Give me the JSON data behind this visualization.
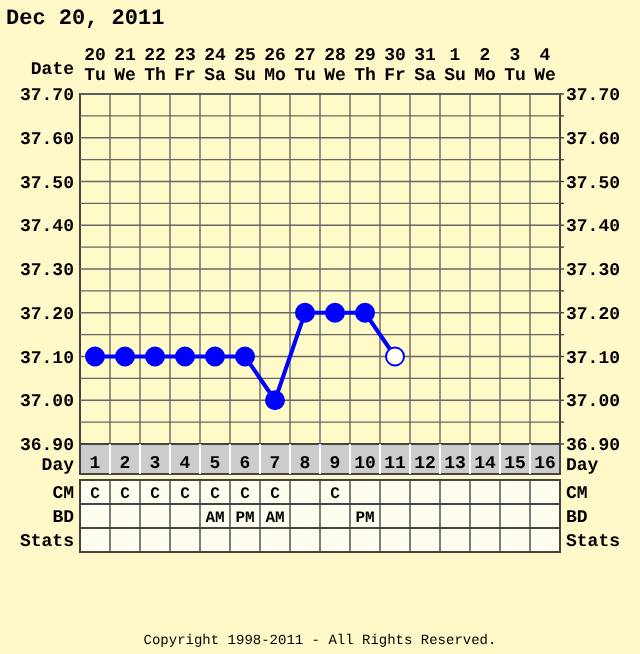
{
  "chart_data": [
    {
      "type": "line",
      "title": "Dec 20, 2011",
      "xlabel": "Day",
      "x2label": "Date",
      "x": [
        1,
        2,
        3,
        4,
        5,
        6,
        7,
        8,
        9,
        10,
        11
      ],
      "xlim": [
        0.5,
        16.5
      ],
      "xticks": [
        1,
        2,
        3,
        4,
        5,
        6,
        7,
        8,
        9,
        10,
        11,
        12,
        13,
        14,
        15,
        16
      ],
      "x2lim": [
        "2011-12-19T12:00",
        "2012-01-04T12:00"
      ],
      "x2ticks": [
        {
          "value": "2011-12-20",
          "label": "20 Tu"
        },
        {
          "value": "2011-12-21",
          "label": "21 We"
        },
        {
          "value": "2011-12-22",
          "label": "22 Th"
        },
        {
          "value": "2011-12-23",
          "label": "23 Fr"
        },
        {
          "value": "2011-12-24",
          "label": "24 Sa"
        },
        {
          "value": "2011-12-25",
          "label": "25 Su"
        },
        {
          "value": "2011-12-26",
          "label": "26 Mo"
        },
        {
          "value": "2011-12-27",
          "label": "27 Tu"
        },
        {
          "value": "2011-12-28",
          "label": "28 We"
        },
        {
          "value": "2011-12-29",
          "label": "29 Th"
        },
        {
          "value": "2011-12-30",
          "label": "30 Fr"
        },
        {
          "value": "2011-12-31",
          "label": "31 Sa"
        },
        {
          "value": "2012-01-01",
          "label": "1 Su"
        },
        {
          "value": "2012-01-02",
          "label": "2 Mo"
        },
        {
          "value": "2012-01-03",
          "label": "3 Tu"
        },
        {
          "value": "2012-01-04",
          "label": "4 We"
        }
      ],
      "series": [
        {
          "color": "#0000ff",
          "values": [
            37.1,
            37.1,
            37.1,
            37.1,
            37.1,
            37.1,
            37.0,
            37.2,
            37.2,
            37.2,
            37.1
          ],
          "colors": [
            "#0000ff",
            "#0000ff",
            "#0000ff",
            "#0000ff",
            "#0000ff",
            "#0000ff",
            "#0000ff",
            "#0000ff",
            "#0000ff",
            "#0000ff",
            "#ffffff"
          ]
        }
      ],
      "ylim": [
        36.9,
        37.7
      ],
      "yticks": [
        {
          "value": 36.9,
          "label": "36.90"
        },
        {
          "value": 36.95,
          "label": null
        },
        {
          "value": 37.0,
          "label": "37.00"
        },
        {
          "value": 37.05,
          "label": null
        },
        {
          "value": 37.1,
          "label": "37.10"
        },
        {
          "value": 37.15,
          "label": null
        },
        {
          "value": 37.2,
          "label": "37.20"
        },
        {
          "value": 37.25,
          "label": null
        },
        {
          "value": 37.3,
          "label": "37.30"
        },
        {
          "value": 37.35,
          "label": null
        },
        {
          "value": 37.4,
          "label": "37.40"
        },
        {
          "value": 37.45,
          "label": null
        },
        {
          "value": 37.5,
          "label": "37.50"
        },
        {
          "value": 37.55,
          "label": null
        },
        {
          "value": 37.6,
          "label": "37.60"
        },
        {
          "value": 37.65,
          "label": null
        },
        {
          "value": 37.7,
          "label": "37.70"
        }
      ],
      "y2lim": [
        36.9,
        37.7
      ],
      "y2ticks": [
        {
          "value": 36.9,
          "label": "36.90"
        },
        {
          "value": 36.95,
          "label": null
        },
        {
          "value": 37.0,
          "label": "37.00"
        },
        {
          "value": 37.05,
          "label": null
        },
        {
          "value": 37.1,
          "label": "37.10"
        },
        {
          "value": 37.15,
          "label": null
        },
        {
          "value": 37.2,
          "label": "37.20"
        },
        {
          "value": 37.25,
          "label": null
        },
        {
          "value": 37.3,
          "label": "37.30"
        },
        {
          "value": 37.35,
          "label": null
        },
        {
          "value": 37.4,
          "label": "37.40"
        },
        {
          "value": 37.45,
          "label": null
        },
        {
          "value": 37.5,
          "label": "37.50"
        },
        {
          "value": 37.55,
          "label": null
        },
        {
          "value": 37.6,
          "label": "37.60"
        },
        {
          "value": 37.65,
          "label": null
        },
        {
          "value": 37.7,
          "label": "37.70"
        }
      ],
      "grid": true,
      "marker": "circle",
      "line_style": "solid"
    },
    {
      "type": "other",
      "y_categories": [
        "CM",
        "BD",
        "Stats"
      ],
      "y2_categories": [
        "CM",
        "BD",
        "Stats"
      ],
      "cell_labels": [
        [
          "C",
          "C",
          "C",
          "C",
          "C",
          "C",
          "C",
          null,
          "C",
          null,
          null,
          null,
          null,
          null,
          null,
          null
        ],
        [
          null,
          null,
          null,
          null,
          "AM",
          "PM",
          "AM",
          null,
          null,
          "PM",
          null,
          null,
          null,
          null,
          null,
          null
        ],
        [
          null,
          null,
          null,
          null,
          null,
          null,
          null,
          null,
          null,
          null,
          null,
          null,
          null,
          null,
          null,
          null
        ]
      ],
      "annotations": [
        "Copyright 1998-2011 - All Rights Reserved."
      ]
    }
  ]
}
